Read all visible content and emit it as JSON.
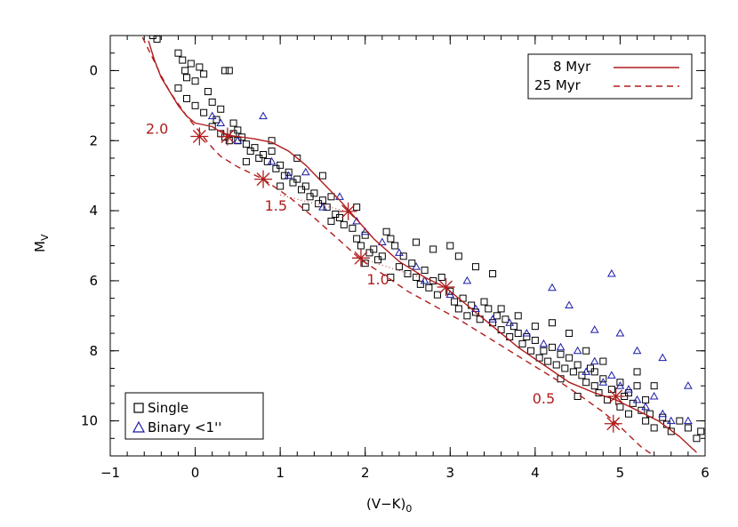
{
  "colors": {
    "model": "#b01c1c",
    "single": "#000000",
    "binary": "#1a1aa8",
    "frame": "#000000"
  },
  "chart_data": {
    "type": "scatter",
    "xlabel_main": "(V−K)",
    "xlabel_sub": "0",
    "ylabel_main": "M",
    "ylabel_sub": "V",
    "xlim": [
      -1,
      6
    ],
    "ylim": [
      11,
      -1
    ],
    "x_ticks": [
      -1,
      0,
      1,
      2,
      3,
      4,
      5,
      6
    ],
    "y_ticks": [
      0,
      2,
      4,
      6,
      8,
      10
    ],
    "models": [
      {
        "name": "8 Myr",
        "style": "solid",
        "x": [
          -0.55,
          -0.48,
          -0.4,
          -0.3,
          -0.2,
          -0.1,
          0.0,
          0.1,
          0.2,
          0.3,
          0.4,
          0.55,
          0.7,
          0.9,
          1.1,
          1.3,
          1.5,
          1.7,
          1.9,
          2.1,
          2.4,
          2.7,
          2.95,
          3.2,
          3.5,
          3.8,
          4.1,
          4.4,
          4.7,
          4.95,
          5.2,
          5.45,
          5.7,
          5.9
        ],
        "y": [
          -0.85,
          -0.3,
          0.2,
          0.6,
          1.0,
          1.3,
          1.5,
          1.55,
          1.6,
          1.75,
          1.85,
          1.9,
          1.95,
          2.05,
          2.3,
          2.7,
          3.2,
          3.7,
          4.25,
          4.8,
          5.45,
          5.9,
          6.2,
          6.7,
          7.3,
          7.9,
          8.4,
          8.9,
          9.2,
          9.4,
          9.7,
          10.0,
          10.45,
          10.9
        ]
      },
      {
        "name": "25 Myr",
        "style": "dashed",
        "x": [
          -0.62,
          -0.5,
          -0.4,
          -0.3,
          -0.2,
          -0.1,
          0.0,
          0.1,
          0.2,
          0.3,
          0.5,
          0.8,
          1.1,
          1.4,
          1.7,
          1.95,
          2.2,
          2.5,
          2.8,
          3.1,
          3.4,
          3.7,
          4.0,
          4.3,
          4.6,
          4.8,
          4.95,
          5.1,
          5.25,
          5.4
        ],
        "y": [
          -0.95,
          -0.35,
          0.15,
          0.6,
          0.95,
          1.3,
          1.6,
          1.9,
          2.2,
          2.45,
          2.75,
          3.1,
          3.6,
          4.2,
          4.85,
          5.4,
          5.8,
          6.3,
          6.7,
          7.1,
          7.55,
          8.0,
          8.45,
          8.9,
          9.4,
          9.75,
          10.05,
          10.4,
          10.75,
          11.0
        ]
      }
    ],
    "mass_markers": [
      {
        "label": "2.0",
        "x8": 0.05,
        "y8": 1.88,
        "x25": 0.05,
        "y25": 1.88
      },
      {
        "label": "1.5",
        "x8": 0.8,
        "y8": 3.1,
        "x25": 0.8,
        "y25": 3.1
      },
      {
        "label": "1.0",
        "x8": 1.8,
        "y8": 4.02,
        "x25": 1.95,
        "y25": 5.35
      },
      {
        "label": "0.5",
        "x8": 4.95,
        "y8": 9.3,
        "x25": 4.92,
        "y25": 10.1
      }
    ],
    "stars_8myr": [
      [
        0.05,
        1.88
      ],
      [
        0.38,
        1.88
      ],
      [
        1.8,
        4.02
      ],
      [
        2.95,
        6.18
      ],
      [
        4.95,
        9.3
      ]
    ],
    "stars_25myr": [
      [
        0.8,
        3.1
      ],
      [
        1.95,
        5.35
      ],
      [
        4.92,
        10.08
      ]
    ],
    "mass_label_positions": [
      [
        -0.45,
        1.8
      ],
      [
        0.95,
        4.0
      ],
      [
        2.15,
        6.1
      ],
      [
        4.1,
        9.5
      ]
    ],
    "connector_lines": [
      [
        [
          1.8,
          4.02
        ],
        [
          1.95,
          5.35
        ]
      ],
      [
        [
          1.95,
          5.35
        ],
        [
          2.95,
          6.18
        ]
      ]
    ],
    "connector_dotted": [
      [
        [
          1.0,
          3.55
        ],
        [
          1.75,
          4.0
        ]
      ],
      [
        [
          2.0,
          5.4
        ],
        [
          2.9,
          6.1
        ]
      ]
    ],
    "legend_models": [
      {
        "label": "8 Myr",
        "style": "solid"
      },
      {
        "label": "25 Myr",
        "style": "dashed"
      }
    ],
    "legend_markers": [
      {
        "label": "Single",
        "marker": "square"
      },
      {
        "label": "Binary <1''",
        "marker": "triangle"
      }
    ],
    "single_points": [
      [
        -0.5,
        -1.0
      ],
      [
        -0.45,
        -0.9
      ],
      [
        -0.2,
        -0.5
      ],
      [
        -0.15,
        -0.3
      ],
      [
        -0.12,
        0.0
      ],
      [
        -0.1,
        0.2
      ],
      [
        -0.05,
        -0.2
      ],
      [
        0.0,
        0.3
      ],
      [
        0.05,
        -0.1
      ],
      [
        0.1,
        0.1
      ],
      [
        -0.2,
        0.5
      ],
      [
        -0.1,
        0.8
      ],
      [
        0.0,
        1.0
      ],
      [
        0.1,
        1.2
      ],
      [
        0.15,
        0.6
      ],
      [
        0.2,
        0.9
      ],
      [
        0.25,
        1.4
      ],
      [
        0.3,
        1.1
      ],
      [
        0.35,
        0.0
      ],
      [
        0.4,
        0.0
      ],
      [
        0.45,
        1.5
      ],
      [
        0.5,
        1.7
      ],
      [
        0.2,
        1.6
      ],
      [
        0.3,
        1.8
      ],
      [
        0.35,
        1.9
      ],
      [
        0.4,
        2.0
      ],
      [
        0.45,
        1.8
      ],
      [
        0.5,
        2.0
      ],
      [
        0.55,
        1.9
      ],
      [
        0.6,
        2.1
      ],
      [
        0.65,
        2.3
      ],
      [
        0.7,
        2.2
      ],
      [
        0.75,
        2.5
      ],
      [
        0.8,
        2.4
      ],
      [
        0.85,
        2.6
      ],
      [
        0.9,
        2.3
      ],
      [
        0.95,
        2.8
      ],
      [
        1.0,
        2.7
      ],
      [
        1.05,
        3.0
      ],
      [
        1.1,
        2.9
      ],
      [
        1.15,
        3.2
      ],
      [
        1.2,
        3.1
      ],
      [
        1.25,
        3.4
      ],
      [
        1.3,
        3.3
      ],
      [
        1.35,
        3.6
      ],
      [
        1.4,
        3.5
      ],
      [
        1.45,
        3.8
      ],
      [
        1.5,
        3.7
      ],
      [
        1.55,
        3.9
      ],
      [
        1.6,
        3.6
      ],
      [
        1.65,
        4.1
      ],
      [
        1.7,
        4.2
      ],
      [
        1.75,
        4.4
      ],
      [
        1.85,
        4.5
      ],
      [
        1.9,
        4.8
      ],
      [
        1.95,
        5.0
      ],
      [
        2.0,
        4.7
      ],
      [
        2.05,
        5.2
      ],
      [
        2.1,
        5.1
      ],
      [
        2.15,
        5.4
      ],
      [
        2.2,
        5.3
      ],
      [
        2.25,
        4.6
      ],
      [
        2.3,
        4.8
      ],
      [
        2.35,
        5.0
      ],
      [
        2.4,
        5.6
      ],
      [
        2.45,
        5.3
      ],
      [
        2.5,
        5.8
      ],
      [
        2.55,
        5.5
      ],
      [
        2.6,
        5.9
      ],
      [
        2.65,
        6.1
      ],
      [
        2.7,
        5.7
      ],
      [
        2.75,
        6.2
      ],
      [
        2.8,
        6.0
      ],
      [
        2.85,
        6.4
      ],
      [
        2.9,
        5.9
      ],
      [
        3.0,
        6.3
      ],
      [
        3.05,
        6.6
      ],
      [
        3.1,
        6.8
      ],
      [
        3.15,
        6.5
      ],
      [
        3.2,
        7.0
      ],
      [
        3.25,
        6.7
      ],
      [
        3.3,
        6.9
      ],
      [
        3.35,
        7.1
      ],
      [
        3.4,
        6.6
      ],
      [
        3.45,
        6.8
      ],
      [
        3.5,
        7.2
      ],
      [
        3.55,
        7.0
      ],
      [
        3.6,
        7.4
      ],
      [
        3.65,
        7.1
      ],
      [
        3.7,
        7.6
      ],
      [
        3.75,
        7.3
      ],
      [
        3.8,
        7.5
      ],
      [
        3.85,
        7.8
      ],
      [
        3.9,
        7.6
      ],
      [
        3.95,
        8.0
      ],
      [
        4.0,
        7.7
      ],
      [
        4.05,
        8.2
      ],
      [
        4.1,
        8.0
      ],
      [
        4.15,
        8.3
      ],
      [
        4.2,
        7.9
      ],
      [
        4.25,
        8.4
      ],
      [
        4.3,
        8.1
      ],
      [
        4.35,
        8.5
      ],
      [
        4.4,
        8.2
      ],
      [
        4.45,
        8.6
      ],
      [
        4.5,
        8.4
      ],
      [
        4.55,
        8.7
      ],
      [
        4.6,
        8.9
      ],
      [
        4.65,
        8.5
      ],
      [
        4.7,
        9.0
      ],
      [
        4.75,
        9.2
      ],
      [
        4.8,
        8.8
      ],
      [
        4.85,
        9.4
      ],
      [
        4.9,
        9.1
      ],
      [
        5.0,
        9.6
      ],
      [
        5.05,
        9.3
      ],
      [
        5.1,
        9.8
      ],
      [
        5.15,
        9.5
      ],
      [
        5.2,
        9.0
      ],
      [
        5.25,
        9.7
      ],
      [
        5.3,
        10.0
      ],
      [
        5.35,
        9.8
      ],
      [
        5.4,
        10.2
      ],
      [
        5.5,
        9.9
      ],
      [
        5.55,
        10.1
      ],
      [
        5.6,
        10.3
      ],
      [
        5.7,
        10.0
      ],
      [
        5.8,
        10.2
      ],
      [
        5.9,
        10.5
      ],
      [
        5.95,
        10.3
      ],
      [
        3.0,
        5.0
      ],
      [
        3.1,
        5.3
      ],
      [
        3.3,
        5.6
      ],
      [
        3.5,
        5.8
      ],
      [
        2.6,
        4.9
      ],
      [
        2.8,
        5.1
      ],
      [
        1.9,
        3.9
      ],
      [
        1.5,
        3.0
      ],
      [
        1.2,
        2.5
      ],
      [
        0.9,
        2.0
      ],
      [
        4.2,
        7.2
      ],
      [
        4.4,
        7.5
      ],
      [
        4.6,
        8.0
      ],
      [
        4.8,
        8.3
      ],
      [
        5.2,
        8.6
      ],
      [
        5.4,
        9.0
      ],
      [
        0.6,
        2.6
      ],
      [
        1.0,
        3.3
      ],
      [
        1.3,
        3.9
      ],
      [
        1.6,
        4.3
      ],
      [
        2.0,
        5.5
      ],
      [
        2.3,
        5.9
      ],
      [
        3.6,
        6.8
      ],
      [
        3.8,
        7.0
      ],
      [
        4.0,
        7.3
      ],
      [
        4.3,
        8.8
      ],
      [
        4.5,
        9.3
      ],
      [
        4.7,
        8.6
      ],
      [
        5.0,
        8.9
      ],
      [
        5.1,
        9.2
      ],
      [
        5.3,
        9.4
      ]
    ],
    "binary_points": [
      [
        0.2,
        1.3
      ],
      [
        0.3,
        1.5
      ],
      [
        0.5,
        2.0
      ],
      [
        0.8,
        1.3
      ],
      [
        0.9,
        2.6
      ],
      [
        1.1,
        3.0
      ],
      [
        1.3,
        2.9
      ],
      [
        1.5,
        3.9
      ],
      [
        1.7,
        3.6
      ],
      [
        1.9,
        4.3
      ],
      [
        2.0,
        4.6
      ],
      [
        2.2,
        4.9
      ],
      [
        2.6,
        5.6
      ],
      [
        2.7,
        6.0
      ],
      [
        3.0,
        6.4
      ],
      [
        3.3,
        6.8
      ],
      [
        3.5,
        7.1
      ],
      [
        3.7,
        7.2
      ],
      [
        3.9,
        7.5
      ],
      [
        4.1,
        7.8
      ],
      [
        4.3,
        7.9
      ],
      [
        4.5,
        8.0
      ],
      [
        4.6,
        8.6
      ],
      [
        4.7,
        8.3
      ],
      [
        4.8,
        8.9
      ],
      [
        4.9,
        8.7
      ],
      [
        5.0,
        9.0
      ],
      [
        5.1,
        9.1
      ],
      [
        5.2,
        9.4
      ],
      [
        5.3,
        9.6
      ],
      [
        5.4,
        9.3
      ],
      [
        5.5,
        9.8
      ],
      [
        5.6,
        10.0
      ],
      [
        5.8,
        10.0
      ],
      [
        4.4,
        6.7
      ],
      [
        4.7,
        7.4
      ],
      [
        5.0,
        7.5
      ],
      [
        5.2,
        8.0
      ],
      [
        5.5,
        8.2
      ],
      [
        5.8,
        9.0
      ],
      [
        4.9,
        5.8
      ],
      [
        4.2,
        6.2
      ],
      [
        3.2,
        6.0
      ],
      [
        2.4,
        5.2
      ]
    ]
  }
}
